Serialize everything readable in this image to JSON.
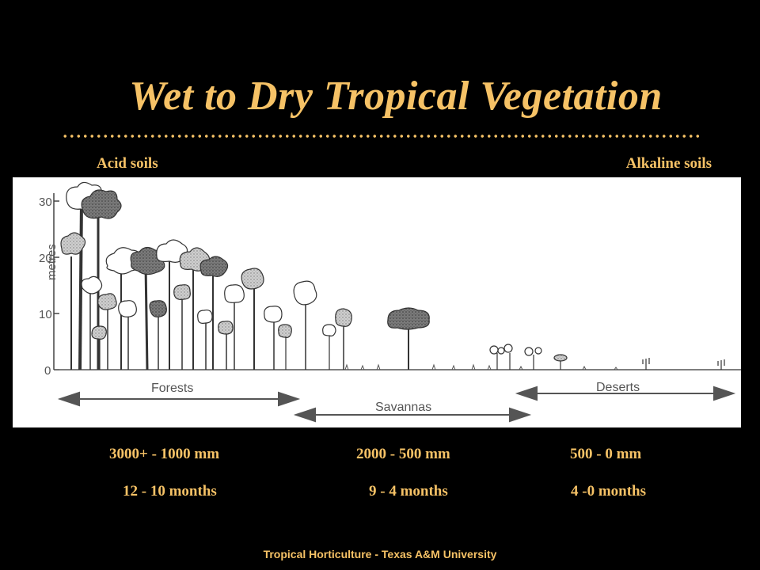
{
  "title": "Wet to Dry Tropical Vegetation",
  "soils": {
    "left": "Acid soils",
    "right": "Alkaline soils"
  },
  "diagram": {
    "ylabel": "metres",
    "yticks": [
      "30",
      "20",
      "10",
      "0"
    ],
    "zones": [
      "Forests",
      "Savannas",
      "Deserts"
    ]
  },
  "rainfall": [
    "3000+ - 1000 mm",
    "2000 - 500 mm",
    "500 - 0 mm"
  ],
  "wet_months": [
    "12 - 10 months",
    "9 - 4 months",
    "4 -0 months"
  ],
  "footer": "Tropical Horticulture - Texas A&M University",
  "colors": {
    "accent": "#f6c266",
    "background": "#000000"
  }
}
